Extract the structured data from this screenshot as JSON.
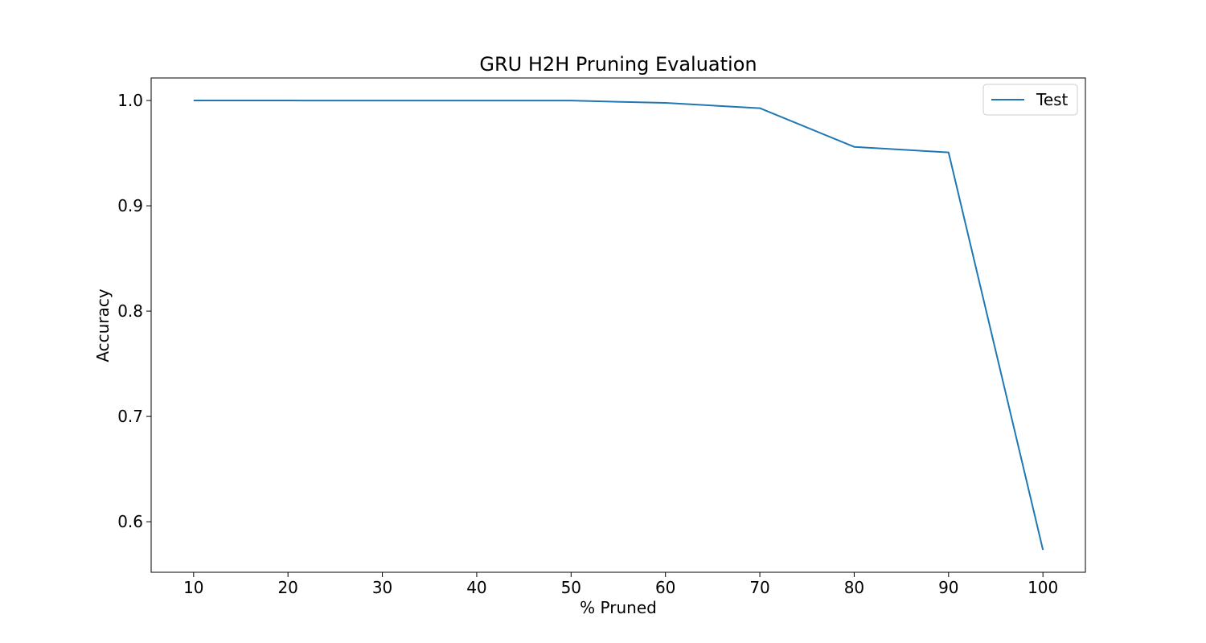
{
  "chart_data": {
    "type": "line",
    "title": "GRU H2H Pruning Evaluation",
    "xlabel": "% Pruned",
    "ylabel": "Accuracy",
    "x": [
      10,
      20,
      30,
      40,
      50,
      60,
      70,
      80,
      90,
      100
    ],
    "series": [
      {
        "name": "Test",
        "color": "#1f77b4",
        "values": [
          1.0,
          1.0,
          0.9999,
          0.9999,
          0.9999,
          0.9977,
          0.9927,
          0.956,
          0.9507,
          0.5733
        ]
      }
    ],
    "xlim": [
      5.5,
      104.5
    ],
    "ylim": [
      0.552,
      1.0214
    ],
    "xticks": [
      10,
      20,
      30,
      40,
      50,
      60,
      70,
      80,
      90,
      100
    ],
    "xtick_labels": [
      "10",
      "20",
      "30",
      "40",
      "50",
      "60",
      "70",
      "80",
      "90",
      "100"
    ],
    "yticks": [
      0.6,
      0.7,
      0.8,
      0.9,
      1.0
    ],
    "ytick_labels": [
      "0.6",
      "0.7",
      "0.8",
      "0.9",
      "1.0"
    ],
    "grid": false,
    "legend_position": "top-right"
  }
}
